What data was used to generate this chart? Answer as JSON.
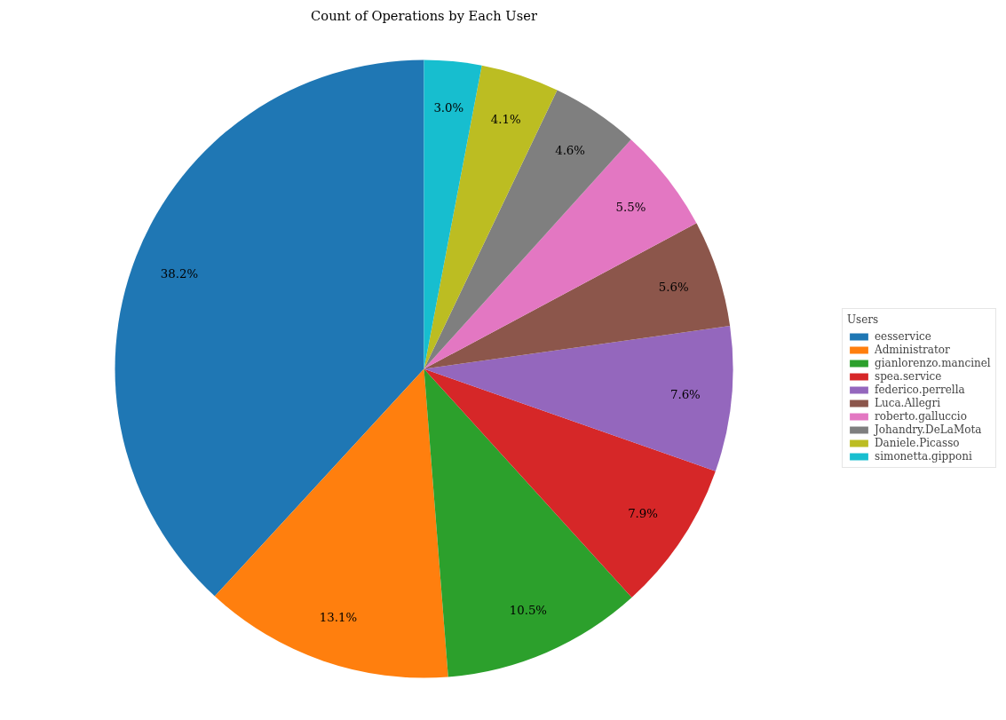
{
  "chart_data": {
    "type": "pie",
    "title": "Count of Operations by Each User",
    "legend_title": "Users",
    "legend": "right",
    "categories": [
      "eesservice",
      "Administrator",
      "gianlorenzo.mancinel",
      "spea.service",
      "federico.perrella",
      "Luca.Allegri",
      "roberto.galluccio",
      "Johandry.DeLaMota",
      "Daniele.Picasso",
      "simonetta.gipponi"
    ],
    "values": [
      38.2,
      13.1,
      10.5,
      7.9,
      7.6,
      5.6,
      5.5,
      4.6,
      4.1,
      3.0
    ],
    "colors": [
      "#1f77b4",
      "#ff7f0e",
      "#2ca02c",
      "#d62728",
      "#9467bd",
      "#8c564b",
      "#e377c2",
      "#7f7f7f",
      "#bcbd22",
      "#17becf"
    ],
    "value_labels": [
      "38.2%",
      "13.1%",
      "10.5%",
      "7.9%",
      "7.6%",
      "5.6%",
      "5.5%",
      "4.6%",
      "4.1%",
      "3.0%"
    ]
  }
}
